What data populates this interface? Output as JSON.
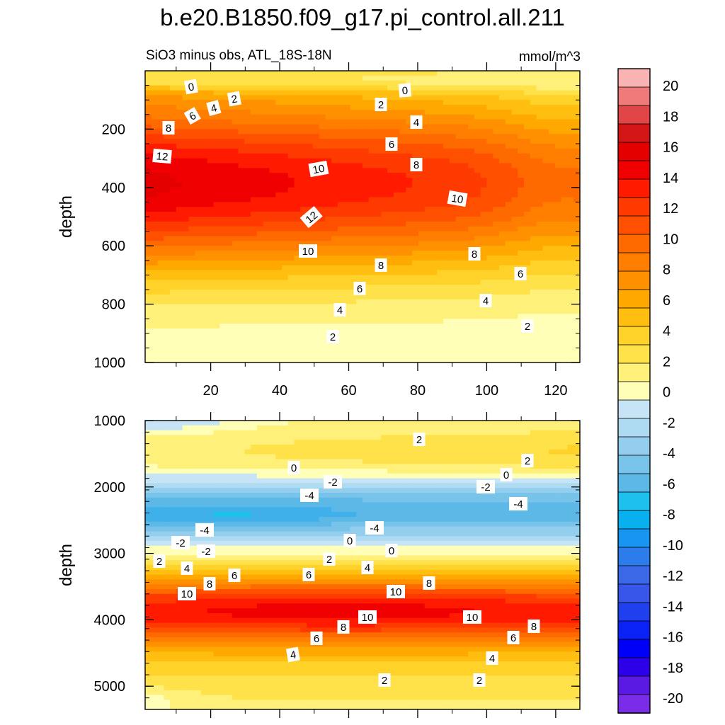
{
  "chart_data": {
    "type": "heatmap",
    "title": "b.e20.B1850.f09_g17.pi_control.all.211",
    "subtitle": "SiO3 minus obs, ATL_18S-18N",
    "units": "mmol/m^3",
    "colorbar": {
      "levels": [
        20,
        18,
        16,
        14,
        12,
        10,
        8,
        6,
        4,
        2,
        0,
        -2,
        -4,
        -6,
        -8,
        -10,
        -12,
        -14,
        -16,
        -18,
        -20
      ],
      "labels": [
        "20",
        "18",
        "16",
        "14",
        "12",
        "10",
        "8",
        "6",
        "4",
        "2",
        "0",
        "-2",
        "-4",
        "-6",
        "-8",
        "-10",
        "-12",
        "-14",
        "-16",
        "-18",
        "-20"
      ],
      "colors": [
        "#F9B3B3",
        "#EE7A7A",
        "#E04646",
        "#D31515",
        "#E50000",
        "#F00000",
        "#FF1A00",
        "#FF3A00",
        "#FF5000",
        "#FF6A00",
        "#FF7E00",
        "#FF9000",
        "#FFA800",
        "#FFBE10",
        "#FFD22A",
        "#FFE24A",
        "#FFF07A",
        "#FFFFB8",
        "#C6E4F5",
        "#AEDAF2",
        "#94CEEE",
        "#78C3EA",
        "#5CB8E7",
        "#1CC1EE",
        "#08B0F0",
        "#1895F0",
        "#2C7CEC",
        "#3A68E6",
        "#3857EA",
        "#2040F0",
        "#0A22F5",
        "#0000F8",
        "#2D00EA",
        "#5A1AE4",
        "#7A2CE8"
      ]
    },
    "panels": [
      {
        "name": "upper",
        "ylabel": "depth",
        "ylim": [
          0,
          1000
        ],
        "yticks": [
          200,
          400,
          600,
          800,
          1000
        ],
        "xlim": [
          1,
          127
        ],
        "xticks": [
          20,
          40,
          60,
          80,
          100,
          120
        ],
        "contour_labels": [
          "0",
          "0",
          "2",
          "2",
          "4",
          "4",
          "6",
          "6",
          "8",
          "8",
          "12",
          "10",
          "12",
          "10",
          "10",
          "8",
          "8",
          "6",
          "6",
          "4",
          "4",
          "2",
          "2"
        ]
      },
      {
        "name": "lower",
        "ylabel": "depth",
        "ylim": [
          1000,
          5350
        ],
        "yticks": [
          1000,
          2000,
          3000,
          4000,
          5000
        ],
        "xlim": [
          1,
          127
        ],
        "contour_labels": [
          "2",
          "2",
          "0",
          "-2",
          "-4",
          "0",
          "-2",
          "-4",
          "-4",
          "-4",
          "-2",
          "0",
          "-2",
          "0",
          "2",
          "2",
          "4",
          "4",
          "6",
          "6",
          "8",
          "8",
          "10",
          "10",
          "10",
          "10",
          "8",
          "8",
          "6",
          "6",
          "4",
          "4",
          "2",
          "2"
        ]
      }
    ]
  }
}
